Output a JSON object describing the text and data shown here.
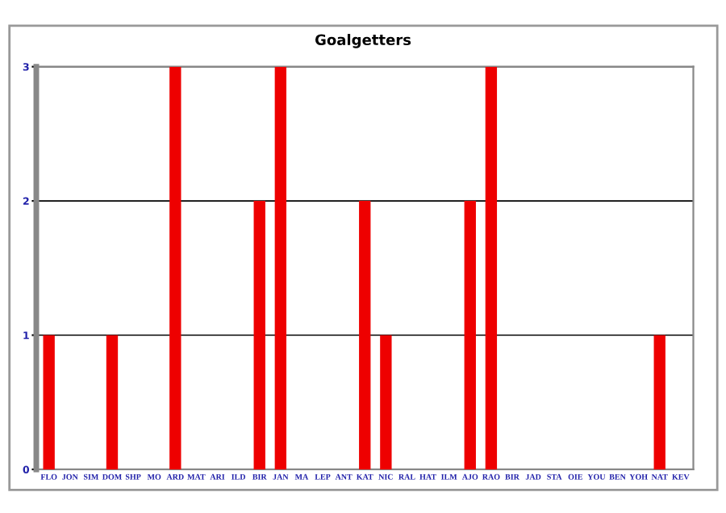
{
  "chart_data": {
    "type": "bar",
    "title": "Goalgetters",
    "categories": [
      "FLO",
      "JON",
      "SIM",
      "DOM",
      "SHP",
      "MO",
      "ARD",
      "MAT",
      "ARI",
      "ILD",
      "BIR",
      "JAN",
      "MA",
      "LEP",
      "ANT",
      "KAT",
      "NIC",
      "RAL",
      "HAT",
      "ILM",
      "AJO",
      "RAO",
      "BIR",
      "JAD",
      "STA",
      "OIE",
      "YOU",
      "BEN",
      "YOH",
      "NAT",
      "KEV"
    ],
    "values": [
      1,
      0,
      0,
      1,
      0,
      0,
      3,
      0,
      0,
      0,
      2,
      3,
      0,
      0,
      0,
      2,
      1,
      0,
      0,
      0,
      2,
      3,
      0,
      0,
      0,
      0,
      0,
      0,
      0,
      1,
      0
    ],
    "color": "#ee0000",
    "ylim": [
      0,
      3
    ],
    "yticks": [
      0,
      1,
      2,
      3
    ],
    "grid": "y"
  }
}
